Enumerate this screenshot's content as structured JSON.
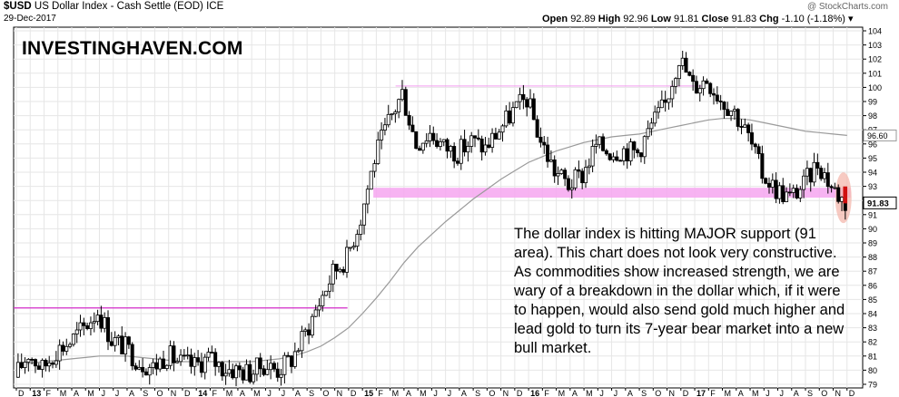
{
  "header": {
    "symbol": "$USD",
    "description": "US Dollar Index - Cash Settle (EOD)",
    "exchange": "ICE",
    "date": "29-Dec-2017",
    "open_label": "Open",
    "open_value": "92.89",
    "high_label": "High",
    "high_value": "92.96",
    "low_label": "Low",
    "low_value": "91.81",
    "close_label": "Close",
    "close_value": "91.83",
    "chg_label": "Chg",
    "chg_value": "-1.10 (-1.18%)",
    "credit": "@ StockCharts.com"
  },
  "brand": "INVESTINGHAVEN.COM",
  "annotation": "The dollar index is hitting MAJOR support (91 area). This chart does not look very constructive. As commodities show increased strength, we are wary of a breakdown in the dollar which, if it were to happen, would also send gold much higher and lead gold to turn its 7-year bear market into a new bull market.",
  "colors": {
    "candle": "#000000",
    "ma": "#9a9a9a",
    "support_band": "#f6a6f0",
    "resistance_line": "#f49cf0",
    "low_line": "#d22ac8",
    "highlight": "#f4b8ae",
    "grid": "#e6e6e6"
  },
  "chart_data": {
    "type": "candlestick",
    "ylim": [
      79,
      104
    ],
    "y_ticks": [
      79,
      80,
      81,
      82,
      83,
      84,
      85,
      86,
      87,
      88,
      89,
      90,
      91,
      92,
      93,
      94,
      95,
      96,
      97,
      98,
      99,
      100,
      101,
      102,
      103,
      104
    ],
    "x_tick_labels": [
      "D",
      "13",
      "F",
      "M",
      "A",
      "M",
      "J",
      "J",
      "A",
      "S",
      "O",
      "N",
      "D",
      "14",
      "F",
      "M",
      "A",
      "M",
      "J",
      "J",
      "A",
      "S",
      "O",
      "N",
      "D",
      "15",
      "F",
      "M",
      "A",
      "M",
      "J",
      "J",
      "A",
      "S",
      "O",
      "N",
      "D",
      "16",
      "F",
      "M",
      "A",
      "M",
      "J",
      "J",
      "A",
      "S",
      "O",
      "N",
      "D",
      "17",
      "F",
      "M",
      "A",
      "M",
      "J",
      "J",
      "A",
      "S",
      "O",
      "N",
      "D"
    ],
    "month_start": "2012-12",
    "last_close": 91.83,
    "ma_value_label": "96.60",
    "ma_current": 96.6,
    "support_zone": [
      92.2,
      92.9
    ],
    "resistance_level": 100.1,
    "old_resistance_level": 84.4,
    "monthly_path": [
      79.5,
      81.2,
      80.1,
      81.4,
      82.0,
      83.0,
      84.2,
      82.2,
      81.6,
      80.6,
      80.2,
      81.1,
      80.5,
      80.3,
      80.9,
      80.2,
      80.0,
      79.8,
      80.4,
      80.0,
      80.8,
      82.6,
      84.8,
      86.9,
      88.0,
      90.8,
      95.0,
      97.5,
      99.6,
      96.0,
      96.8,
      95.8,
      95.4,
      96.2,
      95.7,
      97.0,
      98.3,
      99.2,
      96.2,
      94.1,
      93.1,
      93.8,
      95.9,
      95.5,
      95.6,
      95.4,
      97.3,
      98.8,
      102.2,
      100.0,
      100.6,
      99.2,
      98.3,
      96.5,
      93.9,
      92.8,
      92.2,
      93.1,
      94.7,
      93.0,
      91.83
    ],
    "ma_path": [
      80.4,
      80.5,
      80.6,
      80.7,
      80.8,
      80.9,
      81.0,
      81.0,
      81.0,
      80.9,
      80.8,
      80.7,
      80.6,
      80.6,
      80.6,
      80.6,
      80.6,
      80.6,
      80.7,
      80.8,
      81.0,
      81.3,
      81.7,
      82.3,
      83.0,
      84.0,
      85.1,
      86.3,
      87.6,
      88.7,
      89.6,
      90.5,
      91.3,
      92.1,
      92.8,
      93.5,
      94.1,
      94.7,
      95.1,
      95.5,
      95.8,
      96.1,
      96.3,
      96.5,
      96.6,
      96.7,
      96.9,
      97.1,
      97.3,
      97.5,
      97.7,
      97.8,
      97.8,
      97.7,
      97.5,
      97.3,
      97.1,
      96.9,
      96.8,
      96.7,
      96.6
    ]
  }
}
